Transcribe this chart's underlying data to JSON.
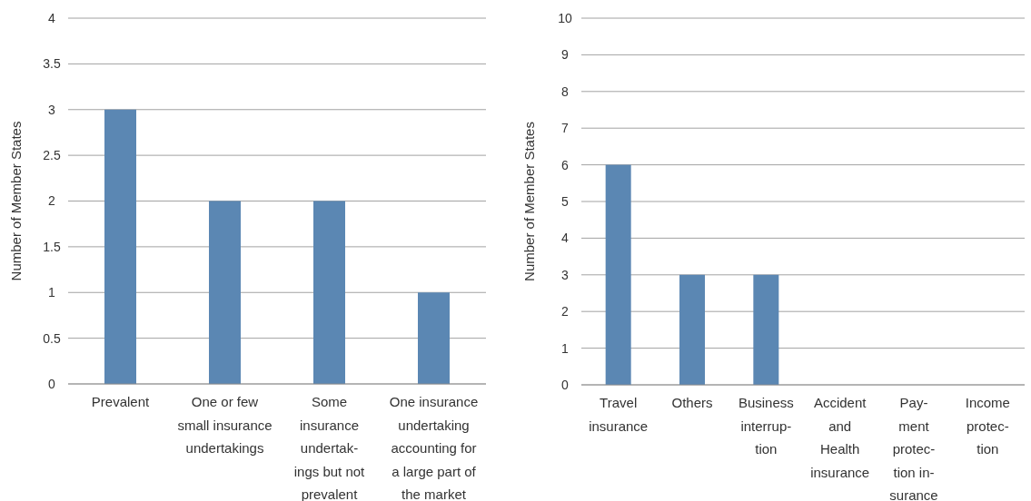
{
  "chart_data": [
    {
      "type": "bar",
      "ylabel": "Number of Member States",
      "categories": [
        "Prevalent",
        "One or few\nsmall insurance\nundertakings",
        "Some\ninsurance\nundertak-\nings but not\nprevalent",
        "One insurance\nundertaking\naccounting for\na large part of\nthe market"
      ],
      "values": [
        3,
        2,
        2,
        1
      ],
      "color": "#5b87b3",
      "ylim": [
        0,
        4
      ],
      "yticks": [
        0,
        0.5,
        1,
        1.5,
        2,
        2.5,
        3,
        3.5,
        4
      ],
      "grid": "y"
    },
    {
      "type": "bar",
      "ylabel": "Number of Member States",
      "categories": [
        "Travel\ninsurance",
        "Others",
        "Business\ninterrup-\ntion",
        "Accident\nand\nHealth\ninsurance",
        "Pay-\nment\nprotec-\ntion in-\nsurance",
        "Income\nprotec-\ntion"
      ],
      "values": [
        6,
        3,
        3,
        0,
        0,
        0
      ],
      "color": "#5b87b3",
      "ylim": [
        0,
        10
      ],
      "yticks": [
        0,
        1,
        2,
        3,
        4,
        5,
        6,
        7,
        8,
        9,
        10
      ],
      "grid": "y"
    }
  ]
}
